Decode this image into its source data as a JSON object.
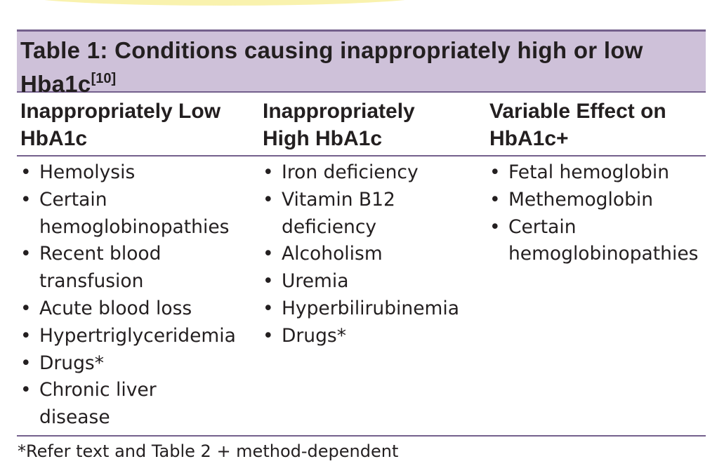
{
  "table": {
    "title_line1": "Table 1: Conditions causing inappropriately high or low",
    "title_line2": "Hba1c",
    "title_ref": "[10]",
    "columns": [
      {
        "header_line1": "Inappropriately Low",
        "header_line2": "HbA1c",
        "items": [
          [
            "Hemolysis"
          ],
          [
            "Certain",
            "hemoglobinopathies"
          ],
          [
            "Recent blood",
            "transfusion"
          ],
          [
            "Acute blood loss"
          ],
          [
            "Hypertriglyceridemia"
          ],
          [
            "Drugs*"
          ],
          [
            "Chronic liver",
            "disease"
          ]
        ]
      },
      {
        "header_line1": "Inappropriately",
        "header_line2": "High HbA1c",
        "items": [
          [
            "Iron deficiency"
          ],
          [
            "Vitamin B12",
            "deficiency"
          ],
          [
            "Alcoholism"
          ],
          [
            "Uremia"
          ],
          [
            "Hyperbilirubinemia"
          ],
          [
            "Drugs*"
          ]
        ]
      },
      {
        "header_line1": "Variable Effect on",
        "header_line2": "HbA1c+",
        "items": [
          [
            "Fetal hemoglobin"
          ],
          [
            "Methemoglobin"
          ],
          [
            "Certain",
            "hemoglobinopathies"
          ]
        ]
      }
    ],
    "bullet_char": "•",
    "footnote": "*Refer text and Table 2 + method-dependent"
  }
}
